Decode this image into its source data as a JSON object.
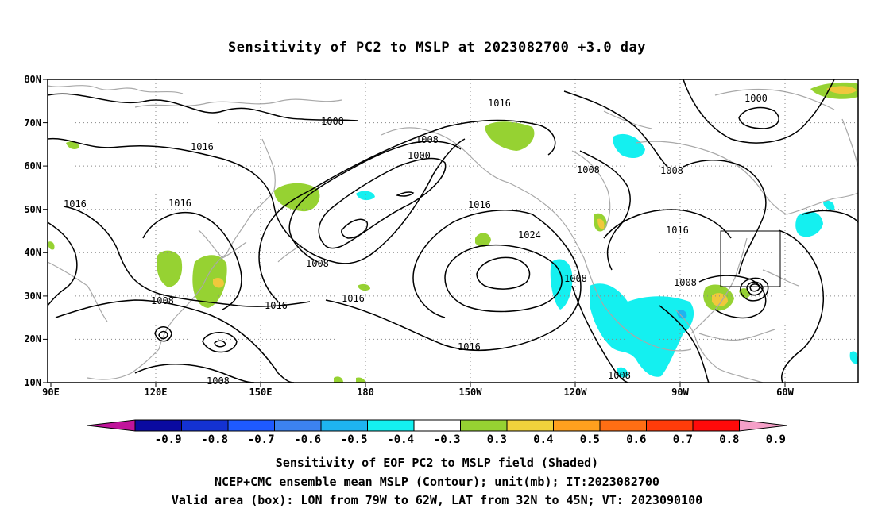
{
  "title": "Sensitivity of PC2 to MSLP at 2023082700 +3.0 day",
  "lat_ticks": [
    "80N",
    "70N",
    "60N",
    "50N",
    "40N",
    "30N",
    "20N",
    "10N"
  ],
  "lon_ticks": [
    "90E",
    "120E",
    "150E",
    "180",
    "150W",
    "120W",
    "90W",
    "60W"
  ],
  "contour_labels": [
    "1008",
    "1016",
    "1000",
    "1008",
    "1016",
    "1008",
    "1000",
    "1008",
    "1016",
    "1016",
    "1024",
    "1008",
    "1008",
    "1016",
    "1008",
    "1008",
    "1016",
    "1016",
    "1008",
    "1016",
    "1008"
  ],
  "colorbar": {
    "labels": [
      "-0.9",
      "-0.8",
      "-0.7",
      "-0.6",
      "-0.5",
      "-0.4",
      "-0.3",
      "0.3",
      "0.4",
      "0.5",
      "0.6",
      "0.7",
      "0.8",
      "0.9"
    ],
    "colors": [
      "#c0149b",
      "#0a0aa0",
      "#1432d2",
      "#1e5aff",
      "#3c82f0",
      "#1eb4f0",
      "#14f0f0",
      "#ffffff",
      "#96d232",
      "#f0d23c",
      "#ffa01e",
      "#ff6e14",
      "#ff3c0a",
      "#ff0a0a",
      "#f5a0c8"
    ]
  },
  "captions": [
    "Sensitivity of EOF PC2 to MSLP field (Shaded)",
    "NCEP+CMC ensemble mean MSLP (Contour); unit(mb); IT:2023082700",
    "Valid area (box): LON from 79W to 62W, LAT from 32N to 45N; VT: 2023090100"
  ],
  "colors": {
    "green": "#96d232",
    "yellow": "#f0c83c",
    "cyan": "#14f0f0",
    "coast": "#a8a8a8",
    "contour": "#000000"
  }
}
